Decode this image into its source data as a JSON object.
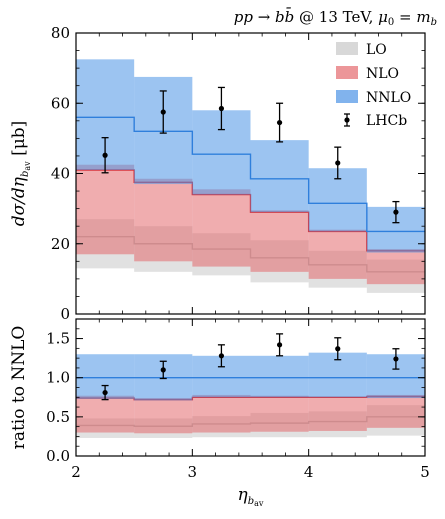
{
  "chart_data": {
    "type": "area",
    "title": "pp → bb̄ @ 13 TeV, μ₀ = m_b",
    "xlabel": "η_{b_av}",
    "xlim": [
      2,
      5
    ],
    "x_ticks": [
      "2",
      "3",
      "4",
      "5"
    ],
    "bin_edges": [
      2.0,
      2.5,
      3.0,
      3.5,
      4.0,
      4.5,
      5.0
    ],
    "legend_position": "top-right",
    "colors": {
      "LO": "#c8c8c8",
      "NLO": "#e46a6e",
      "NNLO": "#4b93e6",
      "LHCb": "#000000"
    },
    "panels": [
      {
        "name": "main",
        "ylabel": "dσ/dη_{b_av} [μb]",
        "ylim": [
          0,
          80
        ],
        "y_ticks": [
          "0",
          "20",
          "40",
          "60",
          "80"
        ],
        "bands": [
          {
            "name": "LO",
            "low": [
              13,
              12,
              11,
              9,
              7.5,
              6
            ],
            "central": [
              22,
              20,
              18.5,
              16,
              14,
              12
            ],
            "high": [
              27,
              25,
              23,
              21,
              18,
              15.5
            ]
          },
          {
            "name": "NLO",
            "low": [
              17,
              15,
              13.5,
              12,
              10,
              8.5
            ],
            "central": [
              41,
              37.5,
              34,
              29,
              23.5,
              18
            ],
            "high": [
              42.5,
              38.5,
              35.5,
              29.5,
              24,
              18.5
            ]
          },
          {
            "name": "NNLO",
            "low": [
              41,
              37,
              34,
              29,
              23.5,
              17.5
            ],
            "central": [
              56,
              52,
              45.5,
              38.5,
              31.5,
              23.5
            ],
            "high": [
              72.5,
              67.5,
              58,
              49.5,
              41.5,
              30.5
            ]
          }
        ],
        "data": {
          "name": "LHCb",
          "x": [
            2.25,
            2.75,
            3.25,
            3.75,
            4.25,
            4.75
          ],
          "y": [
            45.2,
            57.5,
            58.5,
            54.5,
            43.0,
            29.0
          ],
          "err": [
            5.0,
            6.0,
            6.0,
            5.5,
            4.5,
            3.0
          ]
        }
      },
      {
        "name": "ratio",
        "ylabel": "ratio to NNLO",
        "ylim": [
          0,
          1.75
        ],
        "y_ticks": [
          "0.0",
          "0.5",
          "1.0",
          "1.5"
        ],
        "bands": [
          {
            "name": "LO",
            "low": [
              0.23,
              0.23,
              0.24,
              0.24,
              0.24,
              0.26
            ],
            "central": [
              0.39,
              0.38,
              0.41,
              0.42,
              0.44,
              0.5
            ],
            "high": [
              0.48,
              0.48,
              0.51,
              0.55,
              0.57,
              0.65
            ]
          },
          {
            "name": "NLO",
            "low": [
              0.3,
              0.29,
              0.3,
              0.31,
              0.32,
              0.36
            ],
            "central": [
              0.74,
              0.72,
              0.75,
              0.75,
              0.75,
              0.76
            ],
            "high": [
              0.77,
              0.74,
              0.78,
              0.77,
              0.76,
              0.78
            ]
          },
          {
            "name": "NNLO",
            "low": [
              0.73,
              0.71,
              0.75,
              0.75,
              0.75,
              0.74
            ],
            "central": [
              1.0,
              1.0,
              1.0,
              1.0,
              1.0,
              1.0
            ],
            "high": [
              1.3,
              1.3,
              1.28,
              1.28,
              1.32,
              1.3
            ]
          }
        ],
        "data": {
          "name": "LHCb",
          "x": [
            2.25,
            2.75,
            3.25,
            3.75,
            4.25,
            4.75
          ],
          "y": [
            0.81,
            1.1,
            1.28,
            1.42,
            1.37,
            1.24
          ],
          "err": [
            0.09,
            0.11,
            0.14,
            0.14,
            0.14,
            0.13
          ]
        }
      }
    ]
  }
}
